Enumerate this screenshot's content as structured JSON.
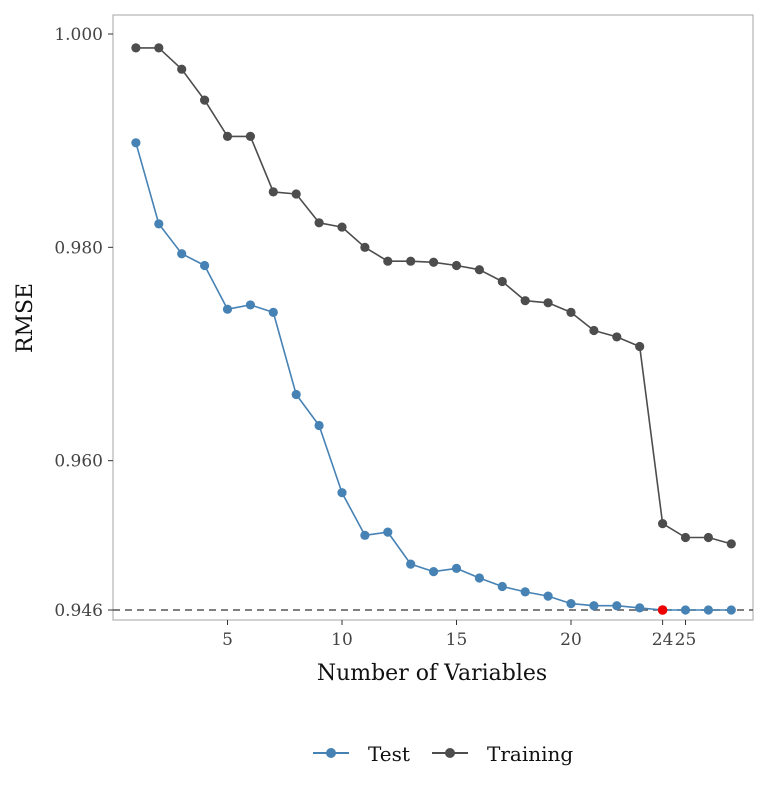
{
  "chart_data": {
    "type": "line",
    "title": "",
    "xlabel": "Number of Variables",
    "ylabel": "RMSE",
    "xlim": [
      0,
      28
    ],
    "ylim": [
      0.9455,
      1.0015
    ],
    "x_ticks": [
      5,
      10,
      15,
      20,
      24,
      25
    ],
    "x_tick_labels": [
      "5",
      "10",
      "15",
      "20",
      "24",
      "25"
    ],
    "y_ticks": [
      0.946,
      0.96,
      0.98,
      1.0
    ],
    "y_tick_labels": [
      "0.946",
      "0.960",
      "0.980",
      "1.000"
    ],
    "grid": false,
    "legend_position": "bottom",
    "reference_line": {
      "y": 0.946,
      "style": "dashed"
    },
    "highlight_point": {
      "x": 24,
      "y": 0.946,
      "color": "#ee0000"
    },
    "series": [
      {
        "name": "Test",
        "color": "#4682b4",
        "x": [
          1,
          2,
          3,
          4,
          5,
          6,
          7,
          8,
          9,
          10,
          11,
          12,
          13,
          14,
          15,
          16,
          17,
          18,
          19,
          20,
          21,
          22,
          23,
          24,
          25,
          26,
          27
        ],
        "y": [
          0.9898,
          0.9822,
          0.9794,
          0.9783,
          0.9742,
          0.9746,
          0.9739,
          0.9662,
          0.9633,
          0.957,
          0.953,
          0.9533,
          0.9503,
          0.9496,
          0.9499,
          0.949,
          0.9482,
          0.9477,
          0.9473,
          0.9466,
          0.9464,
          0.9464,
          0.9462,
          0.946,
          0.946,
          0.946,
          0.946
        ]
      },
      {
        "name": "Training",
        "color": "#4d4d4d",
        "x": [
          1,
          2,
          3,
          4,
          5,
          6,
          7,
          8,
          9,
          10,
          11,
          12,
          13,
          14,
          15,
          16,
          17,
          18,
          19,
          20,
          21,
          22,
          23,
          24,
          25,
          26,
          27
        ],
        "y": [
          0.9987,
          0.9987,
          0.9967,
          0.9938,
          0.9904,
          0.9904,
          0.9852,
          0.985,
          0.9823,
          0.9819,
          0.98,
          0.9787,
          0.9787,
          0.9786,
          0.9783,
          0.9779,
          0.9768,
          0.975,
          0.9748,
          0.9739,
          0.9722,
          0.9716,
          0.9707,
          0.9541,
          0.9528,
          0.9528,
          0.9522
        ]
      }
    ]
  }
}
